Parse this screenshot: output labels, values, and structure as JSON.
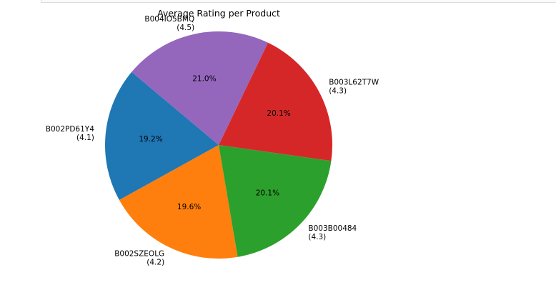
{
  "chart_data": {
    "type": "pie",
    "title": "Average Rating per Product",
    "start_angle_deg": 140,
    "direction": "counterclockwise",
    "slices": [
      {
        "name": "B002PD61Y4",
        "value": 4.1,
        "value_label": "(4.1)",
        "percent": 19.2,
        "percent_label": "19.2%",
        "color": "#1f77b4"
      },
      {
        "name": "B002SZEOLG",
        "value": 4.2,
        "value_label": "(4.2)",
        "percent": 19.6,
        "percent_label": "19.6%",
        "color": "#ff7f0e"
      },
      {
        "name": "B003B00484",
        "value": 4.3,
        "value_label": "(4.3)",
        "percent": 20.1,
        "percent_label": "20.1%",
        "color": "#2ca02c"
      },
      {
        "name": "B003L62T7W",
        "value": 4.3,
        "value_label": "(4.3)",
        "percent": 20.1,
        "percent_label": "20.1%",
        "color": "#d62728"
      },
      {
        "name": "B004IO5BMQ",
        "value": 4.5,
        "value_label": "(4.5)",
        "percent": 21.0,
        "percent_label": "21.0%",
        "color": "#9467bd"
      }
    ]
  }
}
